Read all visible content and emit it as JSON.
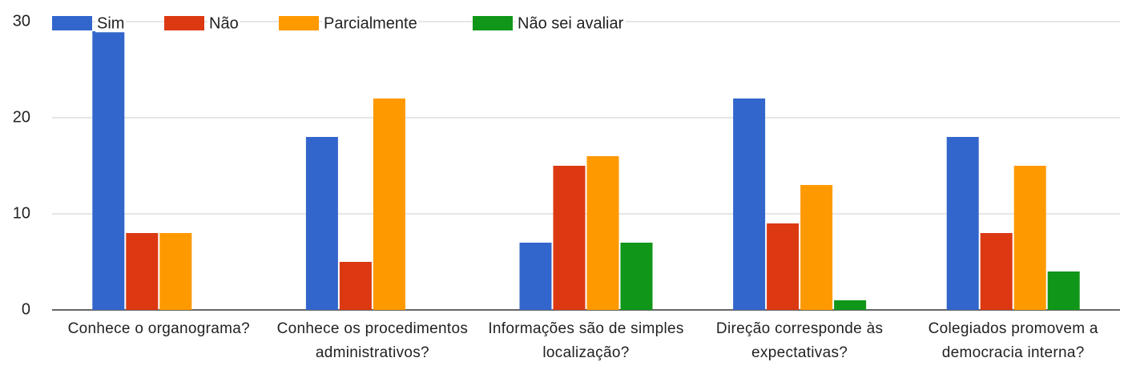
{
  "chart_data": {
    "type": "bar",
    "categories": [
      "Conhece o organograma?",
      "Conhece os procedimentos administrativos?",
      "Informações são de simples localização?",
      "Direção corresponde às expectativas?",
      "Colegiados promovem a democracia interna?"
    ],
    "series": [
      {
        "name": "Sim",
        "color": "#3366cc",
        "values": [
          29,
          18,
          7,
          22,
          18
        ]
      },
      {
        "name": "Não",
        "color": "#dc3912",
        "values": [
          8,
          5,
          15,
          9,
          8
        ]
      },
      {
        "name": "Parcialmente",
        "color": "#ff9900",
        "values": [
          8,
          22,
          16,
          13,
          15
        ]
      },
      {
        "name": "Não sei avaliar",
        "color": "#109618",
        "values": [
          0,
          0,
          7,
          1,
          4
        ]
      }
    ],
    "ylim": [
      0,
      30
    ],
    "yticks": [
      0,
      10,
      20,
      30
    ],
    "grid": true,
    "legend": "top"
  }
}
